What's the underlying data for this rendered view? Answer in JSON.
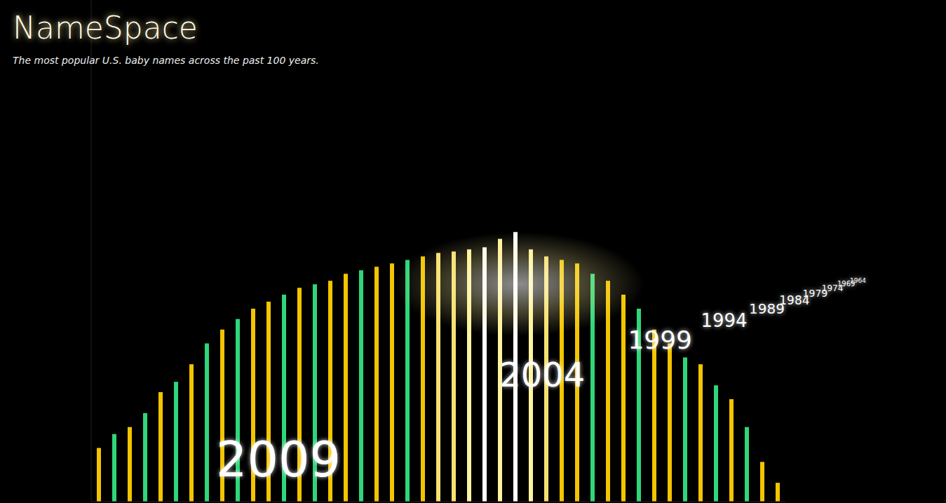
{
  "chart_data": {
    "type": "bar",
    "title": "NameSpace",
    "subtitle": "The most popular U.S. baby names across the past 100 years.",
    "categories": [
      null,
      null,
      null,
      null,
      null,
      null,
      null,
      null,
      null,
      null,
      null,
      null,
      null,
      null,
      null,
      null,
      null,
      null,
      null,
      null,
      null,
      null,
      null,
      null,
      null,
      null,
      null,
      null,
      null,
      null,
      null,
      null,
      null,
      null,
      null,
      null,
      null,
      null,
      null,
      null,
      null,
      null,
      null,
      null,
      null
    ],
    "values": [
      77,
      97,
      107,
      127,
      157,
      172,
      197,
      227,
      247,
      262,
      277,
      287,
      297,
      307,
      312,
      317,
      327,
      332,
      337,
      342,
      347,
      352,
      357,
      359,
      362,
      365,
      377,
      387,
      362,
      352,
      347,
      342,
      327,
      317,
      297,
      277,
      247,
      227,
      207,
      197,
      167,
      147,
      107,
      57,
      27
    ],
    "colors": [
      "#f2c500",
      "#2fd67a",
      "#f2c500",
      "#2fd67a",
      "#f2c500",
      "#2fd67a",
      "#f2c500",
      "#2fd67a",
      "#f2c500",
      "#2fd67a",
      "#f2c500",
      "#f2c500",
      "#2fd67a",
      "#f2c500",
      "#2fd67a",
      "#f2c500",
      "#f2c500",
      "#2fd67a",
      "#f2c500",
      "#f2c500",
      "#2fd67a",
      "#f2c500",
      "#f7e070",
      "#f7e070",
      "#fff3a0",
      "#ffffff",
      "#fff3a0",
      "#ffffff",
      "#fff3a0",
      "#f7e070",
      "#f2c500",
      "#f2c500",
      "#2fd67a",
      "#f2c500",
      "#f2c500",
      "#2fd67a",
      "#f2c500",
      "#f2c500",
      "#2fd67a",
      "#f2c500",
      "#2fd67a",
      "#f2c500",
      "#2fd67a",
      "#f2c500",
      "#f2c500"
    ],
    "ylim": [
      0,
      720
    ],
    "tick_labels": false,
    "annotations": [
      "2009",
      "2004",
      "1999",
      "1994",
      "1989",
      "1984",
      "1979",
      "1974",
      "1969",
      "1964"
    ]
  }
}
